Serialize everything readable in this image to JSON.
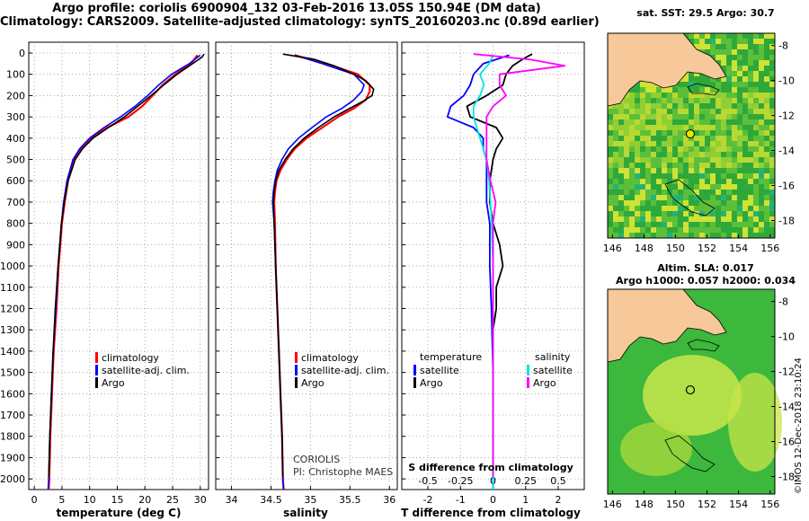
{
  "title": {
    "line1": "Argo profile: coriolis 6900904_132 03-Feb-2016 13.05S 150.94E (DM data)",
    "line2": "Climatology: CARS2009. Satellite-adjusted climatology: synTS_20160203.nc (0.89d earlier)"
  },
  "colors": {
    "climatology": "#ff0000",
    "satellite": "#0000ff",
    "argo": "#000000",
    "s_satellite": "#00e5e5",
    "s_argo": "#ff00ff"
  },
  "depth_axis": {
    "ticks": [
      0,
      100,
      200,
      300,
      400,
      500,
      600,
      700,
      800,
      900,
      1000,
      1100,
      1200,
      1300,
      1400,
      1500,
      1600,
      1700,
      1800,
      1900,
      2000
    ],
    "range": [
      0,
      2050
    ]
  },
  "panels": {
    "temperature": {
      "xlabel": "temperature (deg C)",
      "xticks": [
        "0",
        "5",
        "10",
        "15",
        "20",
        "25",
        "30"
      ],
      "legend": [
        "climatology",
        "satellite-adj. clim.",
        "Argo"
      ]
    },
    "salinity": {
      "xlabel": "salinity",
      "xticks": [
        "34",
        "34.5",
        "35",
        "35.5",
        "36"
      ],
      "legend": [
        "climatology",
        "satellite-adj. clim.",
        "Argo"
      ],
      "credit1": "CORIOLIS",
      "credit2": "PI: Christophe MAES"
    },
    "difference": {
      "xlabel": "T difference from climatology",
      "xticks": [
        "-2",
        "-1",
        "0",
        "1",
        "2"
      ],
      "s_label": "S difference from climatology",
      "s_ticks": [
        "-0.5",
        "-0.25",
        "0",
        "0.25",
        "0.5"
      ],
      "legend_t_head": "temperature",
      "legend_t": [
        "satellite",
        "Argo"
      ],
      "legend_s_head": "salinity",
      "legend_s": [
        "satellite",
        "Argo"
      ]
    }
  },
  "maps": {
    "sst_title": "sat. SST: 29.5 Argo: 30.7",
    "sla_title1": "Altim. SLA: 0.017",
    "sla_title2": "Argo h1000: 0.057 h2000: 0.034",
    "lat_ticks": [
      "-8",
      "-10",
      "-12",
      "-14",
      "-16",
      "-18"
    ],
    "lon_ticks": [
      "146",
      "148",
      "150",
      "152",
      "154",
      "156"
    ],
    "lon_range": [
      145.7,
      156.3
    ],
    "lat_range": [
      -19.0,
      -7.3
    ],
    "argo_lon": 150.94,
    "argo_lat": -13.05
  },
  "stamp": "©IMOS 12-Dec-2018 23:10:24",
  "chart_data": [
    {
      "type": "line",
      "title": "temperature",
      "xlabel": "temperature (deg C)",
      "ylabel": "depth",
      "xlim": [
        -1,
        31.5
      ],
      "ylim": [
        2050,
        0
      ],
      "series": [
        {
          "name": "climatology",
          "depth": [
            10,
            50,
            100,
            150,
            200,
            250,
            300,
            350,
            400,
            450,
            500,
            600,
            700,
            800,
            900,
            1000,
            1200,
            1400,
            1600,
            1800,
            2000,
            2050
          ],
          "values": [
            29.5,
            28.3,
            25.5,
            23.2,
            21.4,
            19.5,
            17.0,
            13.2,
            10.3,
            8.5,
            7.3,
            6.1,
            5.5,
            5.0,
            4.7,
            4.4,
            4.0,
            3.5,
            3.2,
            2.9,
            2.7,
            2.6
          ]
        },
        {
          "name": "satellite-adj. clim.",
          "depth": [
            10,
            50,
            100,
            150,
            200,
            250,
            300,
            350,
            400,
            450,
            500,
            600,
            700,
            800,
            900,
            1000,
            1200,
            1400,
            1600,
            1800,
            2000,
            2050
          ],
          "values": [
            30.0,
            28.0,
            24.8,
            22.5,
            20.5,
            18.2,
            15.6,
            12.6,
            10.0,
            8.2,
            7.0,
            5.9,
            5.3,
            4.9,
            4.6,
            4.3,
            3.9,
            3.4,
            3.1,
            2.8,
            2.6,
            2.5
          ]
        },
        {
          "name": "Argo",
          "depth": [
            5,
            20,
            50,
            100,
            150,
            200,
            250,
            300,
            350,
            400,
            450,
            500,
            600,
            700,
            800,
            900,
            1000,
            1200,
            1400,
            1600,
            1800,
            1990
          ],
          "values": [
            30.7,
            30.3,
            28.6,
            25.8,
            23.4,
            21.1,
            18.7,
            16.3,
            13.4,
            10.6,
            8.7,
            7.4,
            6.1,
            5.4,
            4.9,
            4.6,
            4.3,
            3.8,
            3.4,
            3.1,
            2.8,
            2.6
          ]
        }
      ]
    },
    {
      "type": "line",
      "title": "salinity",
      "xlabel": "salinity",
      "ylabel": "depth",
      "xlim": [
        33.8,
        36.1
      ],
      "ylim": [
        2050,
        0
      ],
      "series": [
        {
          "name": "climatology",
          "depth": [
            10,
            50,
            100,
            150,
            180,
            220,
            260,
            300,
            350,
            400,
            450,
            500,
            550,
            600,
            650,
            700,
            800,
            1000,
            1200,
            1400,
            1600,
            1800,
            2000,
            2050
          ],
          "values": [
            34.8,
            35.2,
            35.6,
            35.75,
            35.75,
            35.7,
            35.55,
            35.35,
            35.15,
            34.95,
            34.8,
            34.7,
            34.62,
            34.57,
            34.55,
            34.54,
            34.55,
            34.56,
            34.58,
            34.6,
            34.62,
            34.64,
            34.65,
            34.66
          ]
        },
        {
          "name": "satellite-adj. clim.",
          "depth": [
            10,
            50,
            100,
            150,
            180,
            220,
            260,
            300,
            350,
            400,
            450,
            500,
            550,
            600,
            650,
            700,
            800,
            1000,
            1200,
            1400,
            1600,
            1800,
            2000,
            2050
          ],
          "values": [
            34.8,
            35.15,
            35.55,
            35.68,
            35.65,
            35.55,
            35.4,
            35.2,
            35.02,
            34.85,
            34.72,
            34.64,
            34.58,
            34.55,
            34.53,
            34.52,
            34.54,
            34.56,
            34.58,
            34.6,
            34.62,
            34.64,
            34.65,
            34.66
          ]
        },
        {
          "name": "Argo",
          "depth": [
            5,
            30,
            60,
            100,
            130,
            170,
            200,
            230,
            260,
            300,
            350,
            400,
            450,
            500,
            550,
            600,
            650,
            700,
            800,
            1000,
            1200,
            1400,
            1600,
            1800,
            1990
          ],
          "values": [
            34.65,
            35.05,
            35.3,
            35.55,
            35.7,
            35.8,
            35.78,
            35.65,
            35.5,
            35.3,
            35.1,
            34.92,
            34.78,
            34.68,
            34.6,
            34.56,
            34.54,
            34.53,
            34.54,
            34.56,
            34.58,
            34.6,
            34.62,
            34.64,
            34.65
          ]
        }
      ]
    },
    {
      "type": "line",
      "title": "T and S difference from climatology",
      "xlabel": "T difference from climatology",
      "xlim": [
        -2.8,
        2.8
      ],
      "s_xlim": [
        -0.7,
        0.7
      ],
      "ylim": [
        2050,
        0
      ],
      "series": [
        {
          "name": "T satellite",
          "axis": "T",
          "depth": [
            10,
            50,
            100,
            150,
            200,
            250,
            300,
            350,
            400,
            450,
            500,
            600,
            700,
            800,
            900,
            1000,
            1200,
            1500,
            1800,
            2050
          ],
          "values": [
            0.5,
            -0.3,
            -0.6,
            -0.7,
            -0.9,
            -1.3,
            -1.4,
            -0.6,
            -0.3,
            -0.3,
            -0.2,
            -0.2,
            -0.2,
            -0.1,
            -0.1,
            -0.1,
            -0.05,
            0,
            0,
            0
          ]
        },
        {
          "name": "T Argo",
          "axis": "T",
          "depth": [
            5,
            30,
            60,
            100,
            150,
            200,
            250,
            300,
            350,
            400,
            450,
            500,
            600,
            700,
            800,
            900,
            1000,
            1100,
            1200,
            1300,
            1500,
            1800,
            1990
          ],
          "values": [
            1.2,
            0.9,
            0.6,
            0.4,
            0.3,
            -0.2,
            -0.8,
            -0.7,
            0.1,
            0.3,
            0.1,
            0.0,
            -0.1,
            -0.1,
            0.0,
            0.2,
            0.3,
            0.1,
            0.1,
            0.0,
            0.0,
            0.0,
            0.0
          ]
        },
        {
          "name": "S satellite",
          "axis": "S",
          "depth": [
            10,
            50,
            100,
            150,
            200,
            250,
            300,
            400,
            500,
            600,
            700,
            800,
            1000,
            1200,
            1500,
            1800,
            2050
          ],
          "values": [
            0.0,
            -0.03,
            -0.1,
            -0.07,
            -0.1,
            -0.15,
            -0.15,
            -0.1,
            -0.05,
            -0.03,
            -0.02,
            -0.01,
            0,
            0,
            0,
            0,
            0
          ]
        },
        {
          "name": "S Argo",
          "axis": "S",
          "depth": [
            5,
            30,
            60,
            100,
            150,
            200,
            250,
            300,
            400,
            500,
            600,
            700,
            800,
            900,
            1000,
            1200,
            1500,
            1800,
            1990
          ],
          "values": [
            -0.15,
            0.28,
            0.55,
            0.05,
            0.05,
            0.1,
            0.0,
            -0.05,
            -0.05,
            -0.05,
            -0.02,
            0.02,
            0.0,
            0.0,
            0.0,
            0.0,
            0.0,
            0.0,
            0.0
          ]
        }
      ]
    }
  ]
}
